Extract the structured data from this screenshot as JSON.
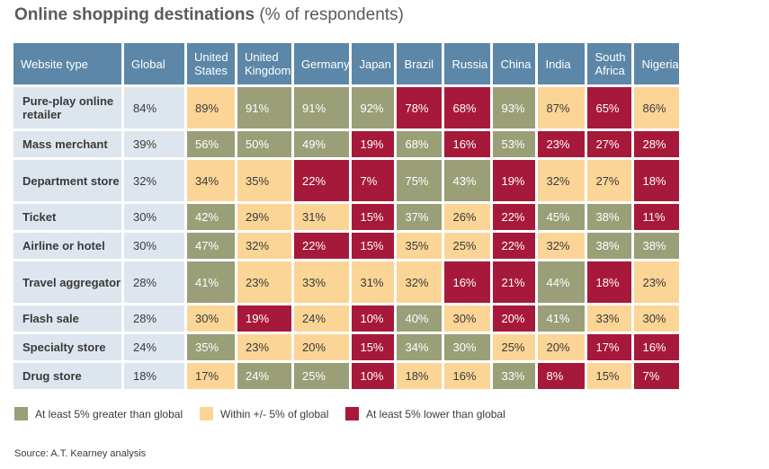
{
  "title": {
    "bold": "Online shopping destinations",
    "normal": " (% of respondents)"
  },
  "colors": {
    "green": "#9a9f78",
    "yellow": "#fbd596",
    "red": "#a7193b",
    "header": "#5c87a8",
    "label_bg": "#dde6ee"
  },
  "header": {
    "website_type": "Website type",
    "global": "Global",
    "countries": [
      "United States",
      "United Kingdom",
      "Germany",
      "Japan",
      "Brazil",
      "Russia",
      "China",
      "India",
      "South Africa",
      "Nigeria"
    ]
  },
  "chart_data": {
    "type": "table",
    "rows": [
      {
        "label": "Pure-play online retailer",
        "global": "84%",
        "values": [
          "89%",
          "91%",
          "91%",
          "92%",
          "78%",
          "68%",
          "93%",
          "87%",
          "65%",
          "86%"
        ],
        "codes": [
          "y",
          "g",
          "g",
          "g",
          "r",
          "r",
          "g",
          "y",
          "r",
          "y"
        ]
      },
      {
        "label": "Mass merchant",
        "global": "39%",
        "values": [
          "56%",
          "50%",
          "49%",
          "19%",
          "68%",
          "16%",
          "53%",
          "23%",
          "27%",
          "28%"
        ],
        "codes": [
          "g",
          "g",
          "g",
          "r",
          "g",
          "r",
          "g",
          "r",
          "r",
          "r"
        ]
      },
      {
        "label": "Department store",
        "global": "32%",
        "values": [
          "34%",
          "35%",
          "22%",
          "7%",
          "75%",
          "43%",
          "19%",
          "32%",
          "27%",
          "18%"
        ],
        "codes": [
          "y",
          "y",
          "r",
          "r",
          "g",
          "g",
          "r",
          "y",
          "y",
          "r"
        ]
      },
      {
        "label": "Ticket",
        "global": "30%",
        "values": [
          "42%",
          "29%",
          "31%",
          "15%",
          "37%",
          "26%",
          "22%",
          "45%",
          "38%",
          "11%"
        ],
        "codes": [
          "g",
          "y",
          "y",
          "r",
          "g",
          "y",
          "r",
          "g",
          "g",
          "r"
        ]
      },
      {
        "label": "Airline or hotel",
        "global": "30%",
        "values": [
          "47%",
          "32%",
          "22%",
          "15%",
          "35%",
          "25%",
          "22%",
          "32%",
          "38%",
          "38%"
        ],
        "codes": [
          "g",
          "y",
          "r",
          "r",
          "y",
          "y",
          "r",
          "y",
          "g",
          "g"
        ]
      },
      {
        "label": "Travel aggregator",
        "global": "28%",
        "values": [
          "41%",
          "23%",
          "33%",
          "31%",
          "32%",
          "16%",
          "21%",
          "44%",
          "18%",
          "23%"
        ],
        "codes": [
          "g",
          "y",
          "y",
          "y",
          "y",
          "r",
          "r",
          "g",
          "r",
          "y"
        ]
      },
      {
        "label": "Flash sale",
        "global": "28%",
        "values": [
          "30%",
          "19%",
          "24%",
          "10%",
          "40%",
          "30%",
          "20%",
          "41%",
          "33%",
          "30%"
        ],
        "codes": [
          "y",
          "r",
          "y",
          "r",
          "g",
          "y",
          "r",
          "g",
          "y",
          "y"
        ]
      },
      {
        "label": "Specialty store",
        "global": "24%",
        "values": [
          "35%",
          "23%",
          "20%",
          "15%",
          "34%",
          "30%",
          "25%",
          "20%",
          "17%",
          "16%"
        ],
        "codes": [
          "g",
          "y",
          "y",
          "r",
          "g",
          "g",
          "y",
          "y",
          "r",
          "r"
        ]
      },
      {
        "label": "Drug store",
        "global": "18%",
        "values": [
          "17%",
          "24%",
          "25%",
          "10%",
          "18%",
          "16%",
          "33%",
          "8%",
          "15%",
          "7%"
        ],
        "codes": [
          "y",
          "g",
          "g",
          "r",
          "y",
          "y",
          "g",
          "r",
          "y",
          "r"
        ]
      }
    ]
  },
  "legend": [
    {
      "label": "At least 5% greater than global",
      "code": "g"
    },
    {
      "label": "Within +/- 5% of global",
      "code": "y"
    },
    {
      "label": "At least 5% lower than global",
      "code": "r"
    }
  ],
  "source": "Source: A.T. Kearney analysis"
}
